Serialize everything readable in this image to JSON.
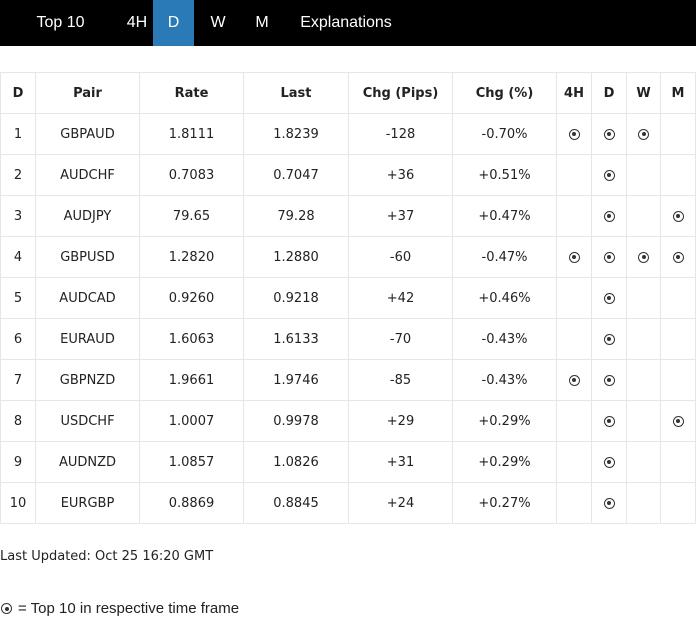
{
  "nav": {
    "tabs": [
      {
        "label": "Top 10",
        "active": false
      },
      {
        "label": "4H",
        "active": false
      },
      {
        "label": "D",
        "active": true
      },
      {
        "label": "W",
        "active": false
      },
      {
        "label": "M",
        "active": false
      },
      {
        "label": "Explanations",
        "active": false
      }
    ],
    "active_color": "#2a7ab8"
  },
  "table": {
    "headers": [
      "D",
      "Pair",
      "Rate",
      "Last",
      "Chg (Pips)",
      "Chg (%)",
      "4H",
      "D",
      "W",
      "M"
    ],
    "rows": [
      {
        "rank": "1",
        "pair": "GBPAUD",
        "rate": "1.8111",
        "last": "1.8239",
        "chg_pips": "-128",
        "chg_pct": "-0.70%",
        "h4": true,
        "d": true,
        "w": true,
        "m": false
      },
      {
        "rank": "2",
        "pair": "AUDCHF",
        "rate": "0.7083",
        "last": "0.7047",
        "chg_pips": "+36",
        "chg_pct": "+0.51%",
        "h4": false,
        "d": true,
        "w": false,
        "m": false
      },
      {
        "rank": "3",
        "pair": "AUDJPY",
        "rate": "79.65",
        "last": "79.28",
        "chg_pips": "+37",
        "chg_pct": "+0.47%",
        "h4": false,
        "d": true,
        "w": false,
        "m": true
      },
      {
        "rank": "4",
        "pair": "GBPUSD",
        "rate": "1.2820",
        "last": "1.2880",
        "chg_pips": "-60",
        "chg_pct": "-0.47%",
        "h4": true,
        "d": true,
        "w": true,
        "m": true
      },
      {
        "rank": "5",
        "pair": "AUDCAD",
        "rate": "0.9260",
        "last": "0.9218",
        "chg_pips": "+42",
        "chg_pct": "+0.46%",
        "h4": false,
        "d": true,
        "w": false,
        "m": false
      },
      {
        "rank": "6",
        "pair": "EURAUD",
        "rate": "1.6063",
        "last": "1.6133",
        "chg_pips": "-70",
        "chg_pct": "-0.43%",
        "h4": false,
        "d": true,
        "w": false,
        "m": false
      },
      {
        "rank": "7",
        "pair": "GBPNZD",
        "rate": "1.9661",
        "last": "1.9746",
        "chg_pips": "-85",
        "chg_pct": "-0.43%",
        "h4": true,
        "d": true,
        "w": false,
        "m": false
      },
      {
        "rank": "8",
        "pair": "USDCHF",
        "rate": "1.0007",
        "last": "0.9978",
        "chg_pips": "+29",
        "chg_pct": "+0.29%",
        "h4": false,
        "d": true,
        "w": false,
        "m": true
      },
      {
        "rank": "9",
        "pair": "AUDNZD",
        "rate": "1.0857",
        "last": "1.0826",
        "chg_pips": "+31",
        "chg_pct": "+0.29%",
        "h4": false,
        "d": true,
        "w": false,
        "m": false
      },
      {
        "rank": "10",
        "pair": "EURGBP",
        "rate": "0.8869",
        "last": "0.8845",
        "chg_pips": "+24",
        "chg_pct": "+0.27%",
        "h4": false,
        "d": true,
        "w": false,
        "m": false
      }
    ]
  },
  "footer": {
    "last_updated": "Last Updated: Oct 25 16:20 GMT",
    "legend_text": "= Top 10 in respective time frame",
    "legend_icon": "target-dot-icon"
  }
}
